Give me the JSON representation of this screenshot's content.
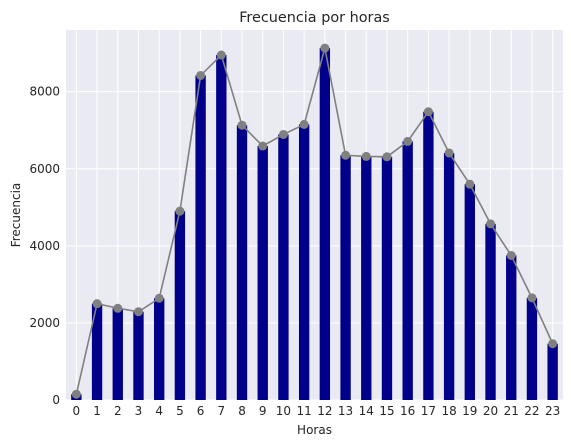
{
  "chart_data": {
    "type": "bar",
    "title": "Frecuencia por horas",
    "xlabel": "Horas",
    "ylabel": "Frecuencia",
    "categories": [
      "0",
      "1",
      "2",
      "3",
      "4",
      "5",
      "6",
      "7",
      "8",
      "9",
      "10",
      "11",
      "12",
      "13",
      "14",
      "15",
      "16",
      "17",
      "18",
      "19",
      "20",
      "21",
      "22",
      "23"
    ],
    "values": [
      150,
      2500,
      2380,
      2290,
      2640,
      4900,
      8420,
      8950,
      7130,
      6590,
      6890,
      7150,
      9130,
      6350,
      6320,
      6310,
      6710,
      7480,
      6410,
      5600,
      4570,
      3750,
      2650,
      1460
    ],
    "line_overlay": true,
    "ylim": [
      0,
      9600
    ],
    "yticks": [
      0,
      2000,
      4000,
      6000,
      8000
    ],
    "grid": true,
    "style": "seaborn-darkgrid",
    "colors": {
      "bar": "#00008b",
      "line": "#808080",
      "background": "#eaeaf2",
      "grid": "#ffffff",
      "text": "#262626"
    }
  }
}
